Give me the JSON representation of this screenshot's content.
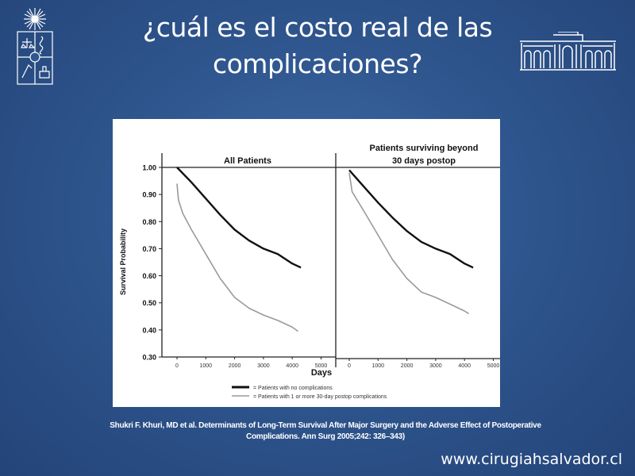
{
  "slide": {
    "title_line1": "¿cuál es el costo real de las",
    "title_line2": "complicaciones?",
    "citation_line1": "Shukri F. Khuri, MD et al. Determinants of Long-Term Survival After Major Surgery and the Adverse Effect of Postoperative",
    "citation_line2": "Complications. Ann Surg 2005;242:  326–343)",
    "footer": "www.cirugiahsalvador.cl",
    "colors": {
      "background": "#2f568e",
      "text": "#ffffff",
      "series_no_comp": "#111111",
      "series_comp": "#9a9a9a"
    }
  },
  "chart_data": [
    {
      "type": "line",
      "title": "All Patients",
      "xlabel": "Days",
      "ylabel": "Survival Probability",
      "xlim": [
        0,
        5000
      ],
      "ylim": [
        0.3,
        1.0
      ],
      "xticks": [
        "0",
        "1000",
        "2000",
        "3000",
        "4000",
        "5000"
      ],
      "yticks": [
        "1.00",
        "0.90",
        "0.80",
        "0.70",
        "0.60",
        "0.50",
        "0.40",
        "0.30"
      ],
      "series": [
        {
          "name": "= Patients with no complications",
          "x": [
            0,
            500,
            1000,
            1500,
            2000,
            2500,
            3000,
            3500,
            4000,
            4300
          ],
          "y": [
            1.0,
            0.945,
            0.885,
            0.825,
            0.77,
            0.73,
            0.7,
            0.68,
            0.645,
            0.63
          ]
        },
        {
          "name": "= Patients with 1 or more 30-day postop complications",
          "x": [
            0,
            50,
            200,
            500,
            1000,
            1500,
            2000,
            2500,
            3000,
            3500,
            4000,
            4200
          ],
          "y": [
            0.94,
            0.88,
            0.83,
            0.77,
            0.68,
            0.59,
            0.52,
            0.48,
            0.455,
            0.435,
            0.41,
            0.395
          ]
        }
      ]
    },
    {
      "type": "line",
      "title": "Patients surviving beyond 30 days postop",
      "xlabel": "Days",
      "ylabel": "Survival Probability",
      "xlim": [
        0,
        5000
      ],
      "ylim": [
        0.3,
        1.0
      ],
      "xticks": [
        "0",
        "1000",
        "2000",
        "3000",
        "4000",
        "5000"
      ],
      "series": [
        {
          "name": "= Patients with no complications",
          "x": [
            0,
            500,
            1000,
            1500,
            2000,
            2500,
            3000,
            3500,
            4000,
            4300
          ],
          "y": [
            0.99,
            0.93,
            0.87,
            0.815,
            0.765,
            0.725,
            0.7,
            0.68,
            0.645,
            0.63
          ]
        },
        {
          "name": "= Patients with 1 or more 30-day postop complications",
          "x": [
            0,
            100,
            500,
            1000,
            1500,
            2000,
            2500,
            3000,
            3500,
            4000,
            4150
          ],
          "y": [
            0.98,
            0.91,
            0.84,
            0.75,
            0.66,
            0.59,
            0.54,
            0.52,
            0.495,
            0.47,
            0.46
          ]
        }
      ]
    }
  ]
}
